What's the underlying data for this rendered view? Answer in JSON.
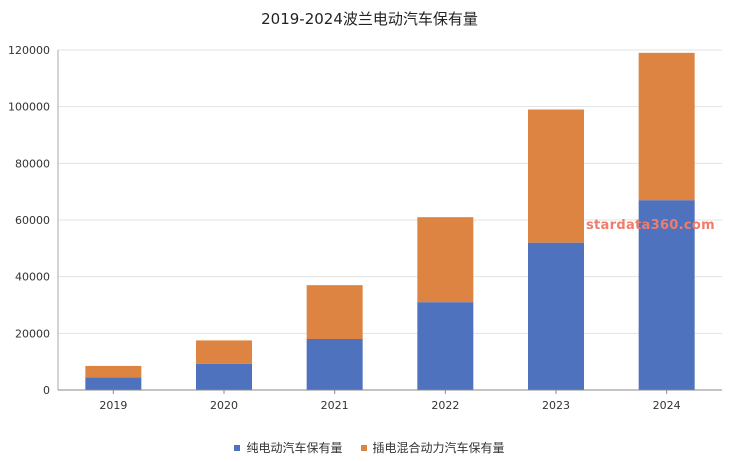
{
  "chart_data": {
    "type": "bar",
    "stacked": true,
    "title": "2019-2024波兰电动汽车保有量",
    "xlabel": "",
    "ylabel": "",
    "categories": [
      "2019",
      "2020",
      "2021",
      "2022",
      "2023",
      "2024"
    ],
    "ylim": [
      0,
      120000
    ],
    "yticks": [
      0,
      20000,
      40000,
      60000,
      80000,
      100000,
      120000
    ],
    "grid": true,
    "legend_position": "bottom",
    "series": [
      {
        "name": "纯电动汽车保有量",
        "color": "#4e72be",
        "values": [
          4500,
          9200,
          18000,
          31000,
          52000,
          67000
        ]
      },
      {
        "name": "插电混合动力汽车保有量",
        "color": "#dd8443",
        "values": [
          4000,
          8300,
          19000,
          30000,
          47000,
          52000
        ]
      }
    ]
  },
  "watermark": {
    "text": "stardata360.com",
    "color": "#f07c6c"
  }
}
